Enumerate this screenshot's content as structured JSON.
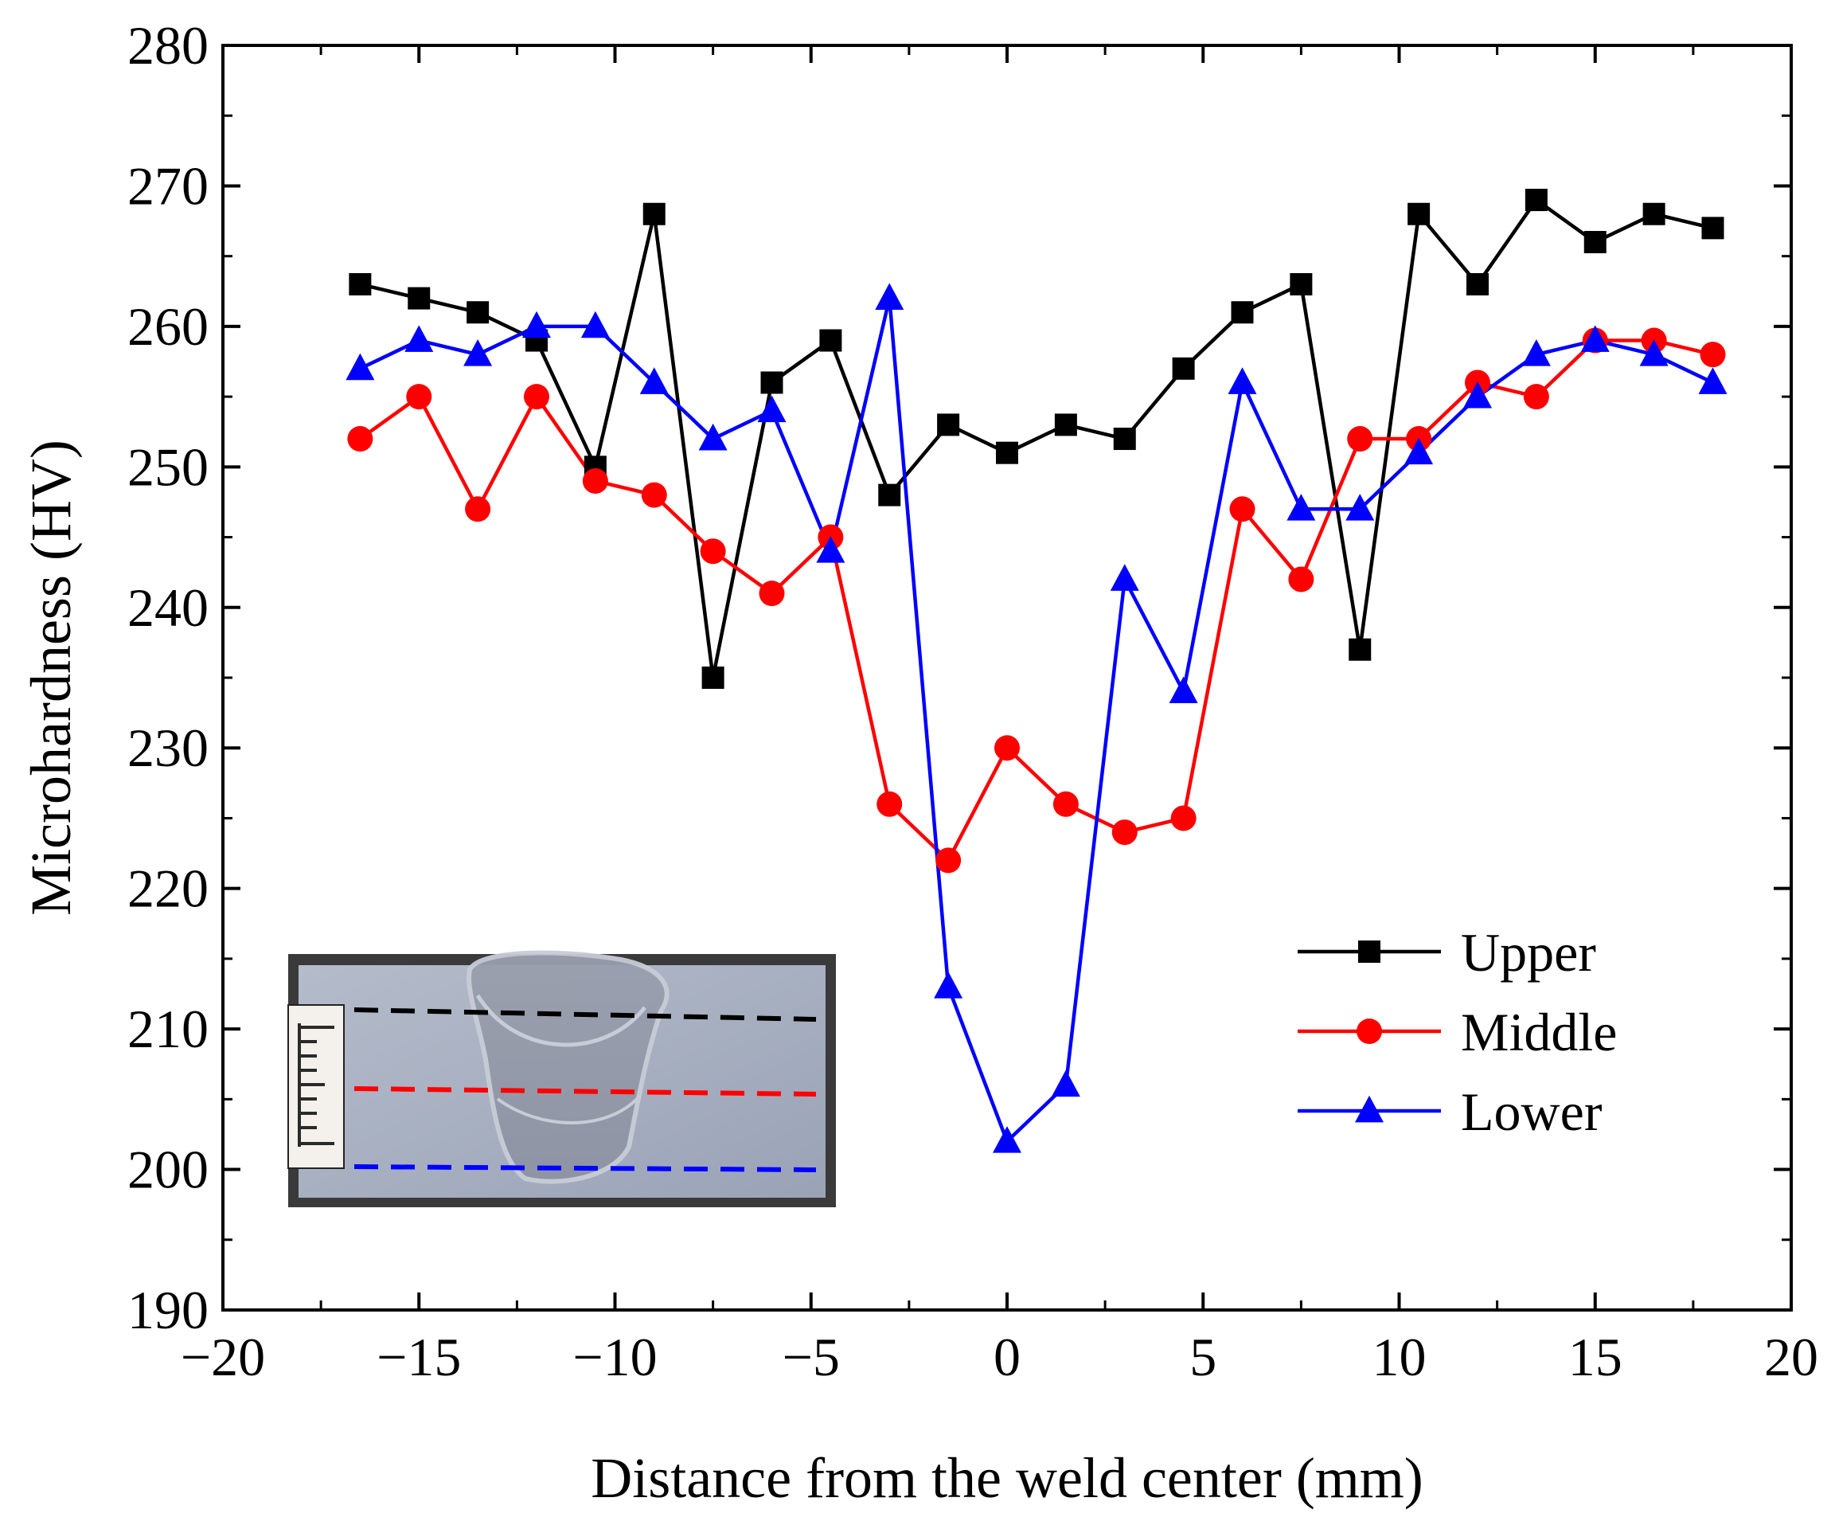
{
  "chart_data": {
    "type": "line",
    "xlabel": "Distance from the weld center (mm)",
    "ylabel": "Microhardness (HV)",
    "xlim": [
      -20,
      20
    ],
    "ylim": [
      190,
      280
    ],
    "x_ticks": [
      -20,
      -15,
      -10,
      -5,
      0,
      5,
      10,
      15,
      20
    ],
    "x_tick_labels": [
      "−20",
      "−15",
      "−10",
      "−5",
      "0",
      "5",
      "10",
      "15",
      "20"
    ],
    "y_ticks": [
      190,
      200,
      210,
      220,
      230,
      240,
      250,
      260,
      270,
      280
    ],
    "y_tick_labels": [
      "190",
      "200",
      "210",
      "220",
      "230",
      "240",
      "250",
      "260",
      "270",
      "280"
    ],
    "grid": false,
    "legend_position": "lower-right",
    "x": [
      -16.5,
      -15,
      -13.5,
      -12,
      -10.5,
      -9,
      -7.5,
      -6,
      -4.5,
      -3,
      -1.5,
      0,
      1.5,
      3,
      4.5,
      6,
      7.5,
      9,
      10.5,
      12,
      13.5,
      15,
      16.5,
      18
    ],
    "series": [
      {
        "name": "Upper",
        "color": "#000000",
        "marker": "square",
        "values": [
          263,
          262,
          261,
          259,
          250,
          268,
          235,
          256,
          259,
          248,
          253,
          251,
          253,
          252,
          257,
          261,
          263,
          237,
          268,
          263,
          269,
          266,
          268,
          267
        ]
      },
      {
        "name": "Middle",
        "color": "#ff0000",
        "marker": "circle",
        "values": [
          252,
          255,
          247,
          255,
          249,
          248,
          244,
          241,
          245,
          226,
          222,
          230,
          226,
          224,
          225,
          247,
          242,
          252,
          252,
          256,
          255,
          259,
          259,
          258
        ]
      },
      {
        "name": "Lower",
        "color": "#0000ff",
        "marker": "triangle",
        "values": [
          257,
          259,
          258,
          260,
          260,
          256,
          252,
          254,
          244,
          262,
          213,
          202,
          206,
          242,
          234,
          256,
          247,
          247,
          251,
          255,
          258,
          259,
          258,
          256
        ]
      }
    ],
    "inset_photo": {
      "description_icon": "weld-cross-section-photo",
      "line_colors": [
        "#000000",
        "#ff0000",
        "#0000ff"
      ]
    }
  }
}
